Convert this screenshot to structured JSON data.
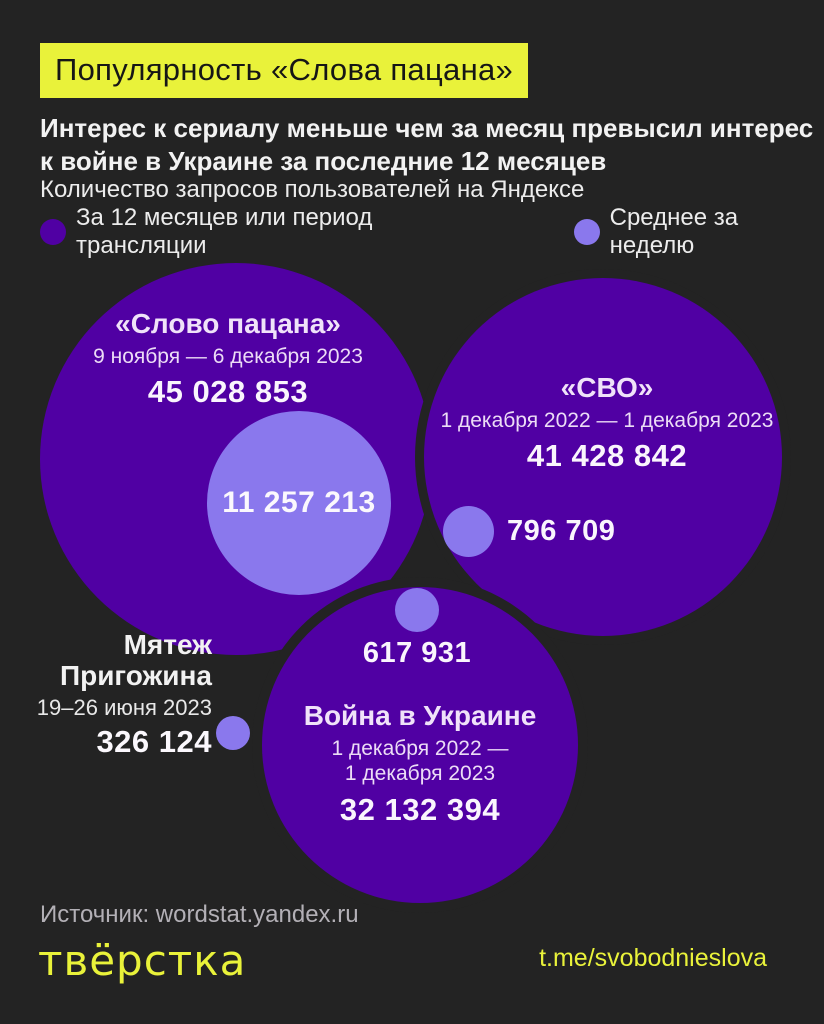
{
  "header": {
    "title": "Популярность «Слова пацана»",
    "subtitle_line1": "Интерес к сериалу меньше чем за месяц превысил интерес",
    "subtitle_line2": "к войне в Украине за последние 12 месяцев"
  },
  "legend": {
    "caption": "Количество запросов пользователей на Яндексе",
    "total_label": "За 12 месяцев или период трансляции",
    "weekly_label": "Среднее за неделю"
  },
  "colors": {
    "background": "#232323",
    "accent_yellow": "#e9f23a",
    "bubble_dark": "#5000a3",
    "bubble_light": "#8a78ed"
  },
  "bubbles": {
    "slovo": {
      "title": "«Слово пацана»",
      "period": "9 ноября — 6 декабря 2023",
      "total": "45 028 853",
      "weekly_avg": "11 257 213"
    },
    "svo": {
      "title": "«СВО»",
      "period": "1 декабря 2022 — 1 декабря 2023",
      "total": "41 428 842",
      "weekly_avg": "796 709"
    },
    "voina": {
      "title": "Война в Украине",
      "period_line1": "1 декабря 2022 —",
      "period_line2": "1 декабря 2023",
      "total": "32 132 394",
      "weekly_avg": "617 931"
    },
    "prigozhin": {
      "title_line1": "Мятеж",
      "title_line2": "Пригожина",
      "period": "19–26 июня 2023",
      "value": "326 124"
    }
  },
  "footer": {
    "source": "Источник: wordstat.yandex.ru",
    "logo": "твёрстка",
    "telegram": "t.me/svobodnieslova"
  },
  "chart_data": {
    "type": "bubble",
    "title": "Популярность «Слова пацана»",
    "subtitle": "Интерес к сериалу меньше чем за месяц превысил интерес к войне в Украине за последние 12 месяцев",
    "caption": "Количество запросов пользователей на Яндексе",
    "legend": [
      {
        "label": "За 12 месяцев или период трансляции",
        "color": "#5000a3"
      },
      {
        "label": "Среднее за неделю",
        "color": "#8a78ed"
      }
    ],
    "legend_position": "top",
    "points": [
      {
        "label": "«Слово пацана»",
        "period": "9 ноября — 6 декабря 2023",
        "total_queries": 45028853,
        "weekly_avg": 11257213
      },
      {
        "label": "«СВО»",
        "period": "1 декабря 2022 — 1 декабря 2023",
        "total_queries": 41428842,
        "weekly_avg": 796709
      },
      {
        "label": "Война в Украине",
        "period": "1 декабря 2022 — 1 декабря 2023",
        "total_queries": 32132394,
        "weekly_avg": 617931
      },
      {
        "label": "Мятеж Пригожина",
        "period": "19–26 июня 2023",
        "value": 326124,
        "dot_color": "#8a78ed"
      }
    ],
    "source": "wordstat.yandex.ru"
  }
}
